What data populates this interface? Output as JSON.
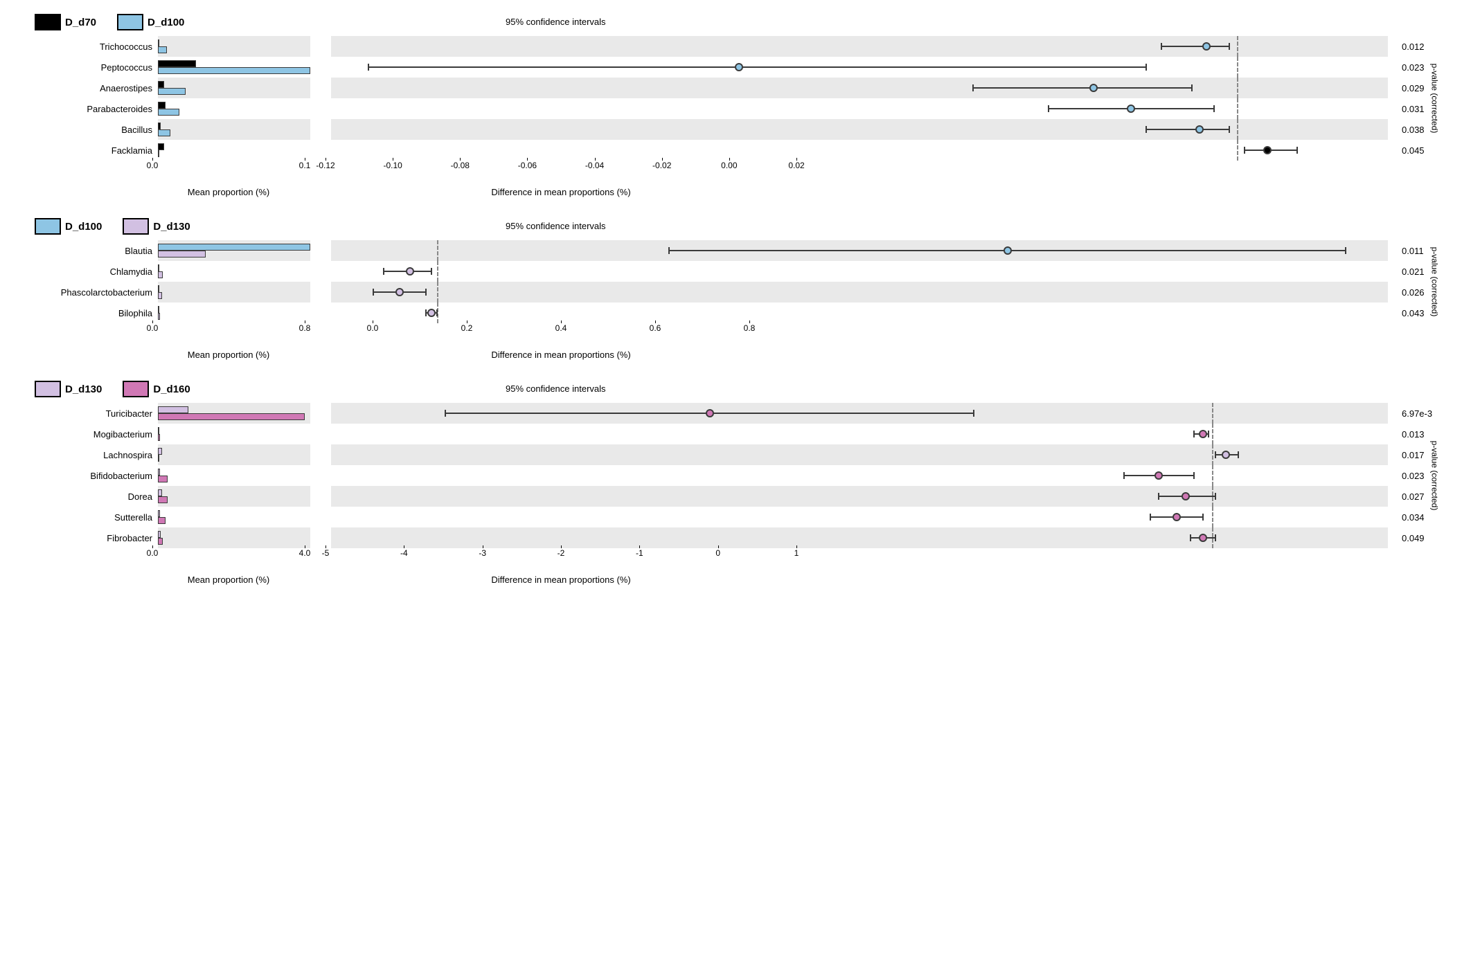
{
  "colors": {
    "D_d70": "#000000",
    "D_d100": "#8ec5e4",
    "D_d130": "#d2c0e2",
    "D_d160": "#d078b5",
    "stripe": "#e9e9e9",
    "axis": "#3a3a3a",
    "dash": "#888888",
    "bg": "#ffffff"
  },
  "panels": [
    {
      "id": "p1",
      "legend": [
        {
          "label": "D_d70",
          "colorKey": "D_d70"
        },
        {
          "label": "D_d100",
          "colorKey": "D_d100"
        }
      ],
      "ci_title": "95% confidence intervals",
      "yaxis_right_label": "p-value (corrected)",
      "bar_axis": {
        "min": 0.0,
        "max": 0.1,
        "ticks": [
          0.0,
          0.1
        ],
        "label": "Mean proportion (%)"
      },
      "ci_axis": {
        "min": -0.12,
        "max": 0.02,
        "zero": 0.0,
        "ticks": [
          -0.12,
          -0.1,
          -0.08,
          -0.06,
          -0.04,
          -0.02,
          0.0,
          0.02
        ],
        "label": "Difference in mean proportions (%)"
      },
      "rows": [
        {
          "name": "Trichococcus",
          "a": 0.001,
          "b": 0.006,
          "mean": -0.004,
          "lo": -0.01,
          "hi": -0.001,
          "p": "0.012",
          "markerColorKey": "D_d100"
        },
        {
          "name": "Peptococcus",
          "a": 0.025,
          "b": 0.1,
          "mean": -0.066,
          "lo": -0.115,
          "hi": -0.012,
          "p": "0.023",
          "markerColorKey": "D_d100"
        },
        {
          "name": "Anaerostipes",
          "a": 0.004,
          "b": 0.018,
          "mean": -0.019,
          "lo": -0.035,
          "hi": -0.006,
          "p": "0.029",
          "markerColorKey": "D_d100"
        },
        {
          "name": "Parabacteroides",
          "a": 0.005,
          "b": 0.014,
          "mean": -0.014,
          "lo": -0.025,
          "hi": -0.003,
          "p": "0.031",
          "markerColorKey": "D_d100"
        },
        {
          "name": "Bacillus",
          "a": 0.002,
          "b": 0.008,
          "mean": -0.005,
          "lo": -0.012,
          "hi": -0.001,
          "p": "0.038",
          "markerColorKey": "D_d100"
        },
        {
          "name": "Facklamia",
          "a": 0.004,
          "b": 0.0,
          "mean": 0.004,
          "lo": 0.001,
          "hi": 0.008,
          "p": "0.045",
          "markerColorKey": "D_d70"
        }
      ]
    },
    {
      "id": "p2",
      "legend": [
        {
          "label": "D_d100",
          "colorKey": "D_d100"
        },
        {
          "label": "D_d130",
          "colorKey": "D_d130"
        }
      ],
      "ci_title": "95% confidence intervals",
      "yaxis_right_label": "p-value (corrected)",
      "bar_axis": {
        "min": 0.0,
        "max": 0.8,
        "ticks": [
          0.0,
          0.8
        ],
        "label": "Mean proportion (%)"
      },
      "ci_axis": {
        "min": -0.1,
        "max": 0.9,
        "zero": 0.0,
        "ticks": [
          0.0,
          0.2,
          0.4,
          0.6,
          0.8
        ],
        "label": "Difference in mean proportions (%)"
      },
      "rows": [
        {
          "name": "Blautia",
          "a": 0.8,
          "b": 0.25,
          "mean": 0.54,
          "lo": 0.22,
          "hi": 0.86,
          "p": "0.011",
          "markerColorKey": "D_d100"
        },
        {
          "name": "Chlamydia",
          "a": 0.005,
          "b": 0.025,
          "mean": -0.025,
          "lo": -0.05,
          "hi": -0.005,
          "p": "0.021",
          "markerColorKey": "D_d130"
        },
        {
          "name": "Phascolarctobacterium",
          "a": 0.005,
          "b": 0.02,
          "mean": -0.035,
          "lo": -0.06,
          "hi": -0.01,
          "p": "0.026",
          "markerColorKey": "D_d130"
        },
        {
          "name": "Bilophila",
          "a": 0.005,
          "b": 0.01,
          "mean": -0.005,
          "lo": -0.01,
          "hi": 0.0,
          "p": "0.043",
          "markerColorKey": "D_d130"
        }
      ]
    },
    {
      "id": "p3",
      "legend": [
        {
          "label": "D_d130",
          "colorKey": "D_d130"
        },
        {
          "label": "D_d160",
          "colorKey": "D_d160"
        }
      ],
      "ci_title": "95% confidence intervals",
      "yaxis_right_label": "p-value (corrected)",
      "bar_axis": {
        "min": 0.0,
        "max": 4.0,
        "ticks": [
          0.0,
          4.0
        ],
        "label": "Mean proportion (%)"
      },
      "ci_axis": {
        "min": -5.0,
        "max": 1.0,
        "zero": 0.0,
        "ticks": [
          -5,
          -4,
          -3,
          -2,
          -1,
          0,
          1
        ],
        "label": "Difference in mean proportions (%)"
      },
      "rows": [
        {
          "name": "Turicibacter",
          "a": 0.8,
          "b": 3.85,
          "mean": -2.85,
          "lo": -4.35,
          "hi": -1.35,
          "p": "6.97e-3",
          "markerColorKey": "D_d160"
        },
        {
          "name": "Mogibacterium",
          "a": 0.0,
          "b": 0.05,
          "mean": -0.05,
          "lo": -0.1,
          "hi": -0.02,
          "p": "0.013",
          "markerColorKey": "D_d160"
        },
        {
          "name": "Lachnospira",
          "a": 0.1,
          "b": 0.02,
          "mean": 0.08,
          "lo": 0.02,
          "hi": 0.15,
          "p": "0.017",
          "markerColorKey": "D_d130"
        },
        {
          "name": "Bifidobacterium",
          "a": 0.05,
          "b": 0.25,
          "mean": -0.3,
          "lo": -0.5,
          "hi": -0.1,
          "p": "0.023",
          "markerColorKey": "D_d160"
        },
        {
          "name": "Dorea",
          "a": 0.1,
          "b": 0.25,
          "mean": -0.15,
          "lo": -0.3,
          "hi": 0.02,
          "p": "0.027",
          "markerColorKey": "D_d160"
        },
        {
          "name": "Sutterella",
          "a": 0.05,
          "b": 0.2,
          "mean": -0.2,
          "lo": -0.35,
          "hi": -0.05,
          "p": "0.034",
          "markerColorKey": "D_d160"
        },
        {
          "name": "Fibrobacter",
          "a": 0.08,
          "b": 0.12,
          "mean": -0.05,
          "lo": -0.12,
          "hi": 0.02,
          "p": "0.049",
          "markerColorKey": "D_d160"
        }
      ]
    }
  ]
}
